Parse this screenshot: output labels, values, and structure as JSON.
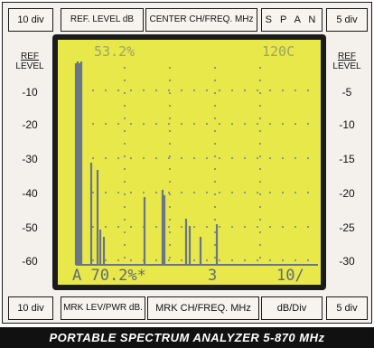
{
  "top_bar": {
    "left_div": "10 div",
    "ref_level": "REF. LEVEL dB",
    "center_freq": "CENTER CH/FREQ. MHz",
    "span": "S P A N",
    "right_div": "5 div"
  },
  "bottom_bar": {
    "left_div": "10 div",
    "mrk_lev": "MRK LEV/PWR dB.",
    "mrk_ch": "MRK CH/FREQ. MHz",
    "db_div": "dB/Div",
    "right_div": "5 div"
  },
  "left_scale": {
    "header_line1": "REF",
    "header_line2": "LEVEL",
    "ticks": [
      "-10",
      "-20",
      "-30",
      "-40",
      "-50",
      "-60"
    ]
  },
  "right_scale": {
    "header_line1": "REF",
    "header_line2": "LEVEL",
    "ticks": [
      "-5",
      "-10",
      "-15",
      "-20",
      "-25",
      "-30"
    ]
  },
  "screen": {
    "top_left_readout": "53.2%",
    "top_right_readout": "120C",
    "bottom_left_readout": "A 70.2%*",
    "bottom_center_readout": "3",
    "bottom_right_readout": "10/",
    "trace_color": "#6a7588",
    "background_color": "#e8e84a"
  },
  "caption": "PORTABLE SPECTRUM ANALYZER 5-870 MHz"
}
